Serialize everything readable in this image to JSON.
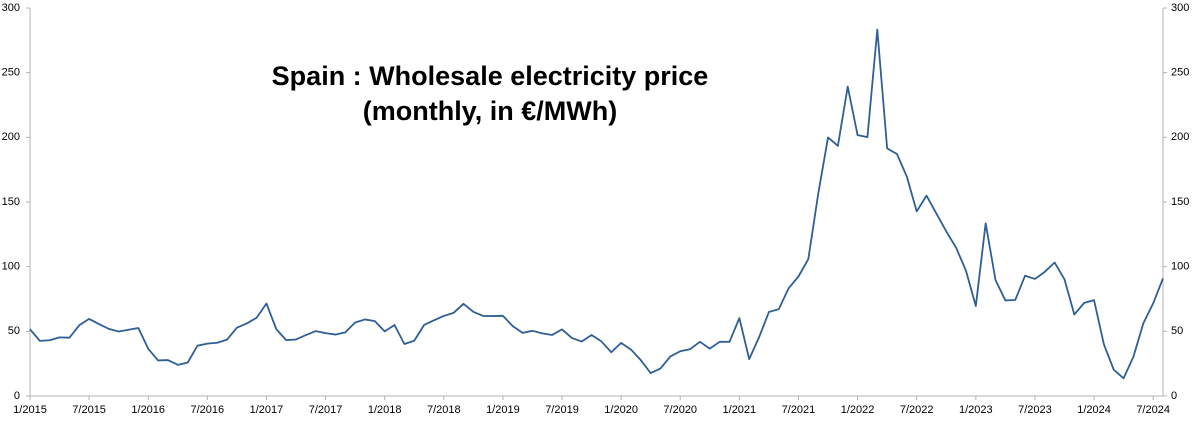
{
  "chart_data": {
    "type": "line",
    "title": [
      "Spain : Wholesale electricity price",
      "(monthly, in €/MWh)"
    ],
    "categories": [
      "1/2015",
      null,
      null,
      null,
      null,
      null,
      "7/2015",
      null,
      null,
      null,
      null,
      null,
      "1/2016",
      null,
      null,
      null,
      null,
      null,
      "7/2016",
      null,
      null,
      null,
      null,
      null,
      "1/2017",
      null,
      null,
      null,
      null,
      null,
      "7/2017",
      null,
      null,
      null,
      null,
      null,
      "1/2018",
      null,
      null,
      null,
      null,
      null,
      "7/2018",
      null,
      null,
      null,
      null,
      null,
      "1/2019",
      null,
      null,
      null,
      null,
      null,
      "7/2019",
      null,
      null,
      null,
      null,
      null,
      "1/2020",
      null,
      null,
      null,
      null,
      null,
      "7/2020",
      null,
      null,
      null,
      null,
      null,
      "1/2021",
      null,
      null,
      null,
      null,
      null,
      "7/2021",
      null,
      null,
      null,
      null,
      null,
      "1/2022",
      null,
      null,
      null,
      null,
      null,
      "7/2022",
      null,
      null,
      null,
      null,
      null,
      "1/2023",
      null,
      null,
      null,
      null,
      null,
      "7/2023",
      null,
      null,
      null,
      null,
      null,
      "1/2024",
      null,
      null,
      null,
      null,
      null,
      "7/2024",
      null
    ],
    "series": [
      {
        "name": "Spain",
        "color": "#2e5f95",
        "values": [
          51.6,
          42.6,
          43.1,
          45.3,
          45.1,
          54.7,
          59.6,
          55.6,
          51.9,
          49.9,
          51.2,
          52.6,
          36.5,
          27.5,
          27.8,
          24.1,
          25.8,
          38.9,
          40.5,
          41.2,
          43.6,
          52.8,
          56.1,
          60.5,
          71.5,
          51.7,
          43.2,
          43.7,
          47.1,
          50.2,
          48.6,
          47.5,
          49.2,
          56.8,
          59.2,
          57.9,
          50.0,
          54.9,
          40.2,
          42.7,
          54.9,
          58.5,
          61.9,
          64.3,
          71.3,
          65.1,
          61.9,
          61.8,
          62.0,
          54.0,
          48.8,
          50.4,
          48.4,
          47.2,
          51.5,
          44.9,
          42.1,
          47.2,
          42.2,
          33.8,
          41.1,
          35.9,
          27.7,
          17.7,
          21.3,
          30.6,
          34.6,
          36.2,
          41.9,
          36.6,
          41.9,
          41.9,
          60.2,
          28.5,
          45.4,
          65.0,
          67.1,
          83.3,
          92.4,
          105.9,
          156.1,
          199.9,
          193.4,
          239.2,
          201.7,
          200.2,
          283.3,
          191.5,
          187.1,
          169.6,
          142.7,
          154.9,
          141.1,
          127.3,
          114.7,
          96.9,
          69.6,
          133.5,
          89.7,
          73.9,
          74.2,
          93.0,
          90.5,
          96.0,
          103.2,
          90.2,
          63.0,
          72.0,
          74.1,
          40.0,
          20.3,
          13.7,
          30.4,
          56.1,
          71.6,
          91.0
        ]
      }
    ],
    "ylim": [
      0,
      300
    ],
    "yticks": [
      0,
      50,
      100,
      150,
      200,
      250,
      300
    ],
    "y2lim": [
      0,
      300
    ],
    "y2ticks": [
      0,
      50,
      100,
      150,
      200,
      250,
      300
    ],
    "grid": false
  }
}
